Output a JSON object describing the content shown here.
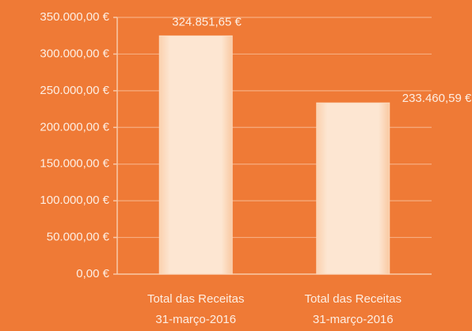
{
  "chart_data": {
    "type": "bar",
    "categories": [
      [
        "Total das Receitas",
        "31-março-2016"
      ],
      [
        "Total das Receitas",
        "31-março-2016"
      ]
    ],
    "values": [
      324851.65,
      233460.59
    ],
    "value_labels": [
      "324.851,65 €",
      "233.460,59 €"
    ],
    "color": "#fde2c8",
    "ylim": [
      0,
      350000
    ],
    "yticks": [
      {
        "value": 0,
        "label": "0,00 €"
      },
      {
        "value": 50000,
        "label": "50.000,00 €"
      },
      {
        "value": 100000,
        "label": "100.000,00 €"
      },
      {
        "value": 150000,
        "label": "150.000,00 €"
      },
      {
        "value": 200000,
        "label": "200.000,00 €"
      },
      {
        "value": 250000,
        "label": "250.000,00 €"
      },
      {
        "value": 300000,
        "label": "300.000,00 €"
      },
      {
        "value": 350000,
        "label": "350.000,00 €"
      }
    ],
    "grid": true
  }
}
